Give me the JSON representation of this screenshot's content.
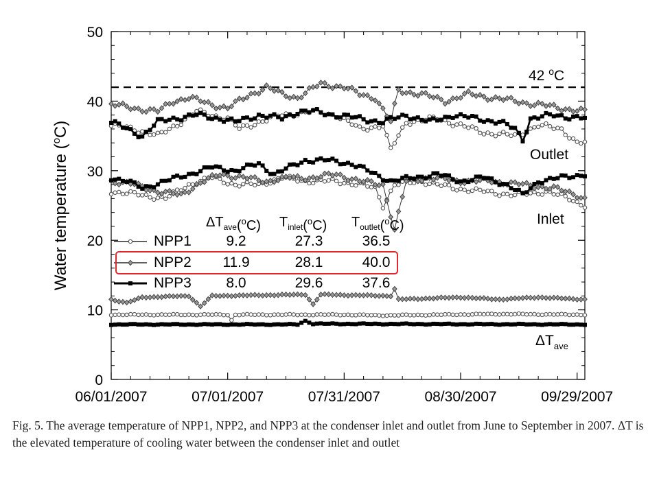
{
  "chart_data": {
    "type": "line",
    "ylabel": "Water temperature (°C)",
    "ylim": [
      0,
      50
    ],
    "yticks": [
      0,
      10,
      20,
      30,
      40,
      50
    ],
    "x_start": "06/01/2007",
    "x_end": "10/01/2007",
    "xticks": [
      "06/01/2007",
      "07/01/2007",
      "07/31/2007",
      "08/30/2007",
      "09/29/2007"
    ],
    "reference_line": {
      "value": 42,
      "label": "42 °C"
    },
    "group_labels": {
      "outlet": "Outlet",
      "inlet": "Inlet",
      "delta": "ΔT",
      "delta_sub": "ave"
    },
    "table_headers": [
      {
        "main": "ΔT",
        "sub": "ave",
        "tail": "(°C)"
      },
      {
        "main": "T",
        "sub": "inlet",
        "tail": "(°C)"
      },
      {
        "main": "T",
        "sub": "outlet",
        "tail": "(°C)"
      }
    ],
    "series": [
      {
        "name": "NPP1",
        "marker": "circle",
        "dT_ave": "9.2",
        "T_inlet": "27.3",
        "T_outlet": "36.5",
        "outlet_knots": [
          [
            0,
            36.5
          ],
          [
            6,
            36.0
          ],
          [
            12,
            35.0
          ],
          [
            18,
            37.0
          ],
          [
            22,
            38.5
          ],
          [
            30,
            37.5
          ],
          [
            33,
            36.0
          ],
          [
            38,
            37.0
          ],
          [
            44,
            38.0
          ],
          [
            52,
            38.5
          ],
          [
            58,
            38.0
          ],
          [
            64,
            36.0
          ],
          [
            70,
            36.5
          ],
          [
            72,
            33.0
          ],
          [
            76,
            37.0
          ],
          [
            84,
            37.5
          ],
          [
            90,
            36.5
          ],
          [
            96,
            35.5
          ],
          [
            104,
            35.0
          ],
          [
            110,
            36.5
          ],
          [
            116,
            36.0
          ],
          [
            120,
            34.0
          ],
          [
            122,
            34.0
          ]
        ],
        "inlet_knots": [
          [
            0,
            27.0
          ],
          [
            8,
            26.5
          ],
          [
            14,
            26.0
          ],
          [
            20,
            28.0
          ],
          [
            26,
            29.0
          ],
          [
            32,
            28.0
          ],
          [
            38,
            28.0
          ],
          [
            44,
            29.0
          ],
          [
            50,
            28.5
          ],
          [
            58,
            28.5
          ],
          [
            64,
            28.0
          ],
          [
            68,
            27.5
          ],
          [
            70,
            25.0
          ],
          [
            73,
            28.0
          ],
          [
            80,
            28.5
          ],
          [
            88,
            27.5
          ],
          [
            96,
            27.0
          ],
          [
            104,
            26.5
          ],
          [
            112,
            27.0
          ],
          [
            118,
            26.0
          ],
          [
            122,
            25.0
          ]
        ],
        "delta_knots": [
          [
            0,
            9.3
          ],
          [
            30,
            9.3
          ],
          [
            31,
            8.5
          ],
          [
            32,
            9.3
          ],
          [
            60,
            9.3
          ],
          [
            70,
            9.2
          ],
          [
            100,
            9.4
          ],
          [
            122,
            9.3
          ]
        ]
      },
      {
        "name": "NPP2",
        "marker": "diamond",
        "dT_ave": "11.9",
        "T_inlet": "28.1",
        "T_outlet": "40.0",
        "outlet_knots": [
          [
            0,
            39.5
          ],
          [
            6,
            39.0
          ],
          [
            12,
            38.5
          ],
          [
            16,
            40.0
          ],
          [
            20,
            40.5
          ],
          [
            26,
            39.5
          ],
          [
            30,
            39.0
          ],
          [
            36,
            41.0
          ],
          [
            40,
            42.0
          ],
          [
            44,
            41.0
          ],
          [
            48,
            40.5
          ],
          [
            54,
            42.5
          ],
          [
            60,
            42.0
          ],
          [
            64,
            41.0
          ],
          [
            68,
            40.5
          ],
          [
            72,
            37.0
          ],
          [
            74,
            41.5
          ],
          [
            80,
            41.0
          ],
          [
            86,
            40.0
          ],
          [
            92,
            41.0
          ],
          [
            98,
            40.5
          ],
          [
            104,
            40.0
          ],
          [
            110,
            39.5
          ],
          [
            116,
            39.0
          ],
          [
            122,
            38.5
          ]
        ],
        "inlet_knots": [
          [
            0,
            28.5
          ],
          [
            6,
            28.0
          ],
          [
            12,
            27.0
          ],
          [
            18,
            26.5
          ],
          [
            22,
            28.0
          ],
          [
            28,
            29.5
          ],
          [
            34,
            29.0
          ],
          [
            40,
            28.5
          ],
          [
            46,
            29.0
          ],
          [
            52,
            29.0
          ],
          [
            58,
            29.5
          ],
          [
            64,
            28.5
          ],
          [
            70,
            28.0
          ],
          [
            73,
            21.5
          ],
          [
            76,
            28.5
          ],
          [
            82,
            29.0
          ],
          [
            90,
            28.5
          ],
          [
            98,
            28.5
          ],
          [
            106,
            28.0
          ],
          [
            114,
            27.5
          ],
          [
            120,
            26.5
          ],
          [
            122,
            26.0
          ]
        ],
        "delta_knots": [
          [
            0,
            11.5
          ],
          [
            4,
            11.0
          ],
          [
            8,
            11.8
          ],
          [
            20,
            12.0
          ],
          [
            23,
            10.5
          ],
          [
            26,
            12.0
          ],
          [
            50,
            12.2
          ],
          [
            52,
            10.8
          ],
          [
            54,
            12.2
          ],
          [
            72,
            12.0
          ],
          [
            73,
            13.0
          ],
          [
            74,
            11.5
          ],
          [
            90,
            11.8
          ],
          [
            100,
            11.5
          ],
          [
            110,
            11.8
          ],
          [
            122,
            11.5
          ]
        ]
      },
      {
        "name": "NPP3",
        "marker": "square",
        "dT_ave": "8.0",
        "T_inlet": "29.6",
        "T_outlet": "37.6",
        "outlet_knots": [
          [
            0,
            37.0
          ],
          [
            4,
            36.0
          ],
          [
            8,
            35.0
          ],
          [
            12,
            37.0
          ],
          [
            16,
            37.5
          ],
          [
            22,
            38.0
          ],
          [
            28,
            37.5
          ],
          [
            32,
            37.0
          ],
          [
            38,
            38.0
          ],
          [
            44,
            37.5
          ],
          [
            48,
            38.5
          ],
          [
            52,
            38.5
          ],
          [
            58,
            38.0
          ],
          [
            64,
            37.5
          ],
          [
            70,
            37.0
          ],
          [
            76,
            38.0
          ],
          [
            82,
            37.0
          ],
          [
            88,
            38.0
          ],
          [
            94,
            37.5
          ],
          [
            100,
            37.0
          ],
          [
            104,
            36.0
          ],
          [
            106,
            34.5
          ],
          [
            108,
            37.5
          ],
          [
            114,
            38.0
          ],
          [
            122,
            37.5
          ]
        ],
        "inlet_knots": [
          [
            0,
            29.0
          ],
          [
            4,
            28.5
          ],
          [
            8,
            27.5
          ],
          [
            14,
            28.5
          ],
          [
            20,
            29.5
          ],
          [
            26,
            30.5
          ],
          [
            32,
            30.0
          ],
          [
            38,
            31.0
          ],
          [
            42,
            29.5
          ],
          [
            46,
            30.5
          ],
          [
            50,
            31.5
          ],
          [
            56,
            31.5
          ],
          [
            62,
            31.0
          ],
          [
            68,
            29.5
          ],
          [
            72,
            28.5
          ],
          [
            78,
            29.0
          ],
          [
            84,
            29.5
          ],
          [
            90,
            28.5
          ],
          [
            96,
            29.0
          ],
          [
            102,
            28.0
          ],
          [
            106,
            26.5
          ],
          [
            110,
            28.5
          ],
          [
            116,
            29.0
          ],
          [
            122,
            29.5
          ]
        ],
        "delta_knots": [
          [
            0,
            7.9
          ],
          [
            48,
            7.9
          ],
          [
            50,
            8.4
          ],
          [
            52,
            8.0
          ],
          [
            122,
            7.9
          ]
        ]
      }
    ]
  },
  "caption": "Fig. 5. The average temperature of NPP1, NPP2, and NPP3 at the condenser inlet and outlet from June to September in 2007. ΔT is the elevated temperature of cooling water between the condenser inlet and outlet"
}
